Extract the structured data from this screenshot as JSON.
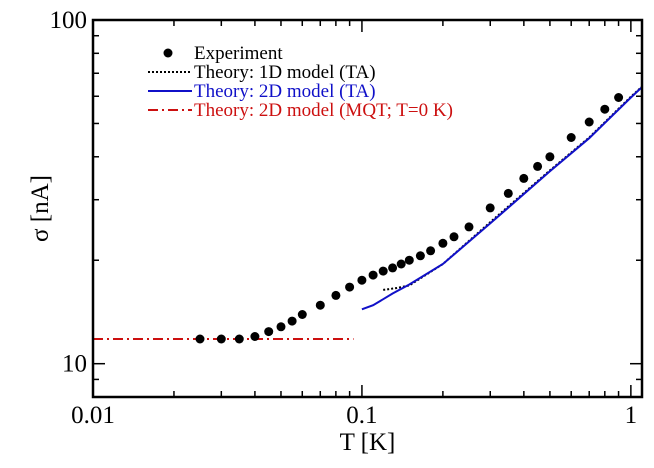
{
  "chart_data": {
    "type": "scatter",
    "xscale": "log",
    "yscale": "log",
    "xlim": [
      0.01,
      1.1
    ],
    "ylim": [
      8,
      100
    ],
    "xlabel": "T [K]",
    "ylabel": "σ [nA]",
    "xticks": [
      {
        "value": 0.01,
        "label": "0.01"
      },
      {
        "value": 0.1,
        "label": "0.1"
      },
      {
        "value": 1,
        "label": "1"
      }
    ],
    "yticks": [
      {
        "value": 10,
        "label": "10"
      },
      {
        "value": 100,
        "label": "100"
      }
    ],
    "series": [
      {
        "name": "Experiment",
        "kind": "markers",
        "color": "#000000",
        "x": [
          0.025,
          0.03,
          0.035,
          0.04,
          0.045,
          0.05,
          0.055,
          0.06,
          0.07,
          0.08,
          0.09,
          0.1,
          0.11,
          0.12,
          0.13,
          0.14,
          0.15,
          0.165,
          0.18,
          0.2,
          0.22,
          0.25,
          0.3,
          0.35,
          0.4,
          0.45,
          0.5,
          0.6,
          0.7,
          0.8,
          0.9
        ],
        "y": [
          11.8,
          11.8,
          11.8,
          12.0,
          12.4,
          12.8,
          13.3,
          13.9,
          14.8,
          15.8,
          16.7,
          17.5,
          18.1,
          18.6,
          19.0,
          19.5,
          20.0,
          20.6,
          21.3,
          22.4,
          23.4,
          25.0,
          28.4,
          31.3,
          34.6,
          37.5,
          40.0,
          45.5,
          50.5,
          55.0,
          59.5
        ]
      },
      {
        "name": "Theory: 1D model (TA)",
        "kind": "line",
        "dash": "dotted",
        "color": "#000000",
        "x": [
          0.12,
          0.135,
          0.15,
          0.2,
          0.3,
          0.5,
          0.7,
          1.0,
          1.1
        ],
        "y": [
          16.4,
          16.6,
          16.9,
          19.5,
          25.8,
          36.5,
          45.5,
          59.8,
          64.0
        ]
      },
      {
        "name": "Theory: 2D model (TA)",
        "kind": "line",
        "dash": "solid",
        "color": "#1010c8",
        "x": [
          0.1,
          0.11,
          0.12,
          0.13,
          0.15,
          0.2,
          0.3,
          0.5,
          0.7,
          1.0,
          1.1
        ],
        "y": [
          14.4,
          14.8,
          15.4,
          16.0,
          17.0,
          19.5,
          25.6,
          36.3,
          45.3,
          59.5,
          63.8
        ]
      },
      {
        "name": "Theory: 2D model (MQT; T=0 K)",
        "kind": "line",
        "dash": "dashdot",
        "color": "#cc1010",
        "x": [
          0.01,
          0.093
        ],
        "y": [
          11.8,
          11.8
        ]
      }
    ],
    "legend": {
      "position": "top-left",
      "entries": [
        {
          "label": "Experiment",
          "color": "#000000",
          "kind": "marker"
        },
        {
          "label": "Theory: 1D model (TA)",
          "color": "#000000",
          "kind": "dotted"
        },
        {
          "label": "Theory: 2D model (TA)",
          "color": "#1010c8",
          "kind": "solid"
        },
        {
          "label": "Theory: 2D model (MQT; T=0 K)",
          "color": "#cc1010",
          "kind": "dashdot"
        }
      ]
    }
  }
}
